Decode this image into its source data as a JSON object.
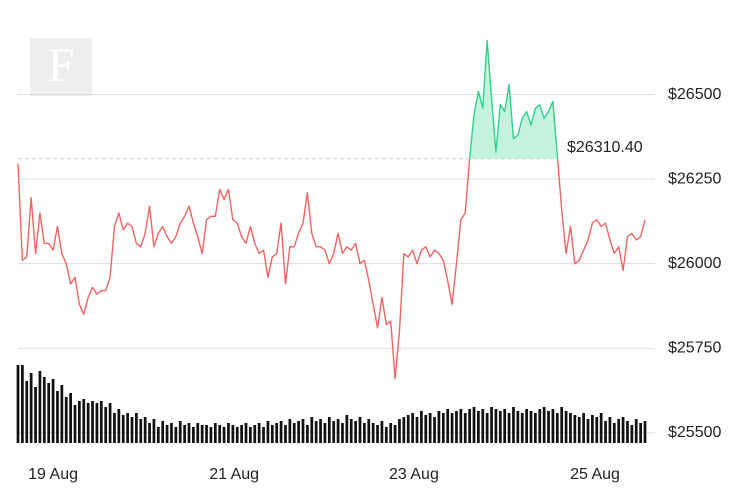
{
  "chart_data": {
    "type": "line",
    "logo": "F",
    "ylim": [
      25440,
      26780
    ],
    "yticks": [
      {
        "value": 25500,
        "label": "$25500"
      },
      {
        "value": 25750,
        "label": "$25750"
      },
      {
        "value": 26000,
        "label": "$26000"
      },
      {
        "value": 26250,
        "label": "$26250"
      },
      {
        "value": 26500,
        "label": "$26500"
      }
    ],
    "xlim": [
      0,
      143
    ],
    "xticks": [
      {
        "value": 8,
        "label": "19 Aug"
      },
      {
        "value": 49.3,
        "label": "21 Aug"
      },
      {
        "value": 90.3,
        "label": "23 Aug"
      },
      {
        "value": 131.6,
        "label": "25 Aug"
      }
    ],
    "baseline": {
      "value": 26310.4,
      "label": "$26310.40"
    },
    "grid": true,
    "series": [
      {
        "color": "#f26464",
        "color_above": "#2fd08c",
        "fill_above": "#c3f3dc",
        "values": [
          26296,
          26010,
          26020,
          26195,
          26030,
          26150,
          26060,
          26060,
          26040,
          26110,
          26030,
          26000,
          25940,
          25960,
          25880,
          25850,
          25900,
          25930,
          25910,
          25920,
          25920,
          25960,
          26110,
          26150,
          26100,
          26120,
          26110,
          26060,
          26050,
          26090,
          26170,
          26050,
          26090,
          26110,
          26080,
          26060,
          26080,
          26120,
          26140,
          26170,
          26120,
          26080,
          26030,
          26130,
          26140,
          26140,
          26220,
          26190,
          26220,
          26130,
          26120,
          26080,
          26060,
          26110,
          26060,
          26030,
          26040,
          25960,
          26020,
          26030,
          26120,
          25940,
          26050,
          26050,
          26090,
          26120,
          26210,
          26090,
          26050,
          26050,
          26040,
          26000,
          26030,
          26090,
          26030,
          26050,
          26040,
          26060,
          26000,
          26010,
          25950,
          25880,
          25810,
          25900,
          25820,
          25830,
          25660,
          25800,
          26030,
          26020,
          26040,
          26000,
          26040,
          26050,
          26020,
          26040,
          26030,
          26010,
          25950,
          25880,
          26000,
          26130,
          26150,
          26310,
          26440,
          26510,
          26460,
          26660,
          26490,
          26330,
          26470,
          26450,
          26530,
          26370,
          26380,
          26430,
          26450,
          26410,
          26460,
          26470,
          26430,
          26450,
          26480,
          26320,
          26160,
          26030,
          26110,
          26000,
          26010,
          26040,
          26070,
          26120,
          26130,
          26110,
          26120,
          26070,
          26030,
          26050,
          25980,
          26080,
          26090,
          26070,
          26080,
          26130
        ]
      }
    ],
    "y2lim": [
      0,
      100
    ],
    "volume": {
      "color": "#111111",
      "values": [
        78,
        78,
        62,
        70,
        56,
        72,
        66,
        60,
        64,
        52,
        58,
        46,
        50,
        38,
        42,
        44,
        40,
        42,
        40,
        42,
        36,
        40,
        30,
        34,
        28,
        30,
        26,
        30,
        24,
        26,
        20,
        24,
        16,
        22,
        18,
        20,
        16,
        22,
        18,
        20,
        16,
        20,
        18,
        18,
        16,
        20,
        18,
        16,
        20,
        18,
        16,
        18,
        20,
        16,
        18,
        20,
        16,
        22,
        18,
        20,
        22,
        18,
        24,
        20,
        22,
        24,
        18,
        26,
        22,
        24,
        20,
        26,
        22,
        24,
        20,
        28,
        24,
        22,
        26,
        20,
        24,
        20,
        18,
        22,
        16,
        20,
        18,
        24,
        26,
        28,
        30,
        26,
        32,
        28,
        30,
        26,
        32,
        30,
        34,
        30,
        32,
        34,
        30,
        34,
        36,
        32,
        34,
        30,
        36,
        34,
        32,
        34,
        30,
        36,
        32,
        30,
        34,
        32,
        30,
        34,
        36,
        32,
        34,
        30,
        36,
        32,
        30,
        28,
        26,
        30,
        24,
        28,
        26,
        30,
        22,
        26,
        20,
        24,
        26,
        22,
        18,
        24,
        20,
        22
      ]
    }
  }
}
